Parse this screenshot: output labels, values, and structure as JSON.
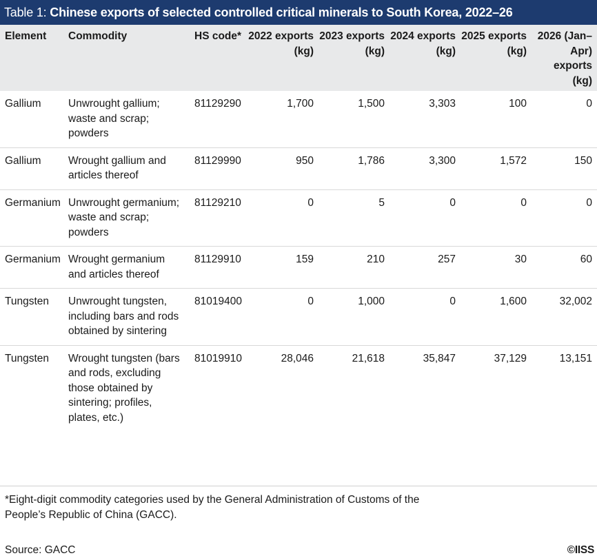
{
  "title": {
    "label": "Table 1:",
    "text": "Chinese exports of selected controlled critical minerals to South Korea, 2022–26"
  },
  "table": {
    "headers": {
      "element": "Element",
      "commodity": "Commodity",
      "hs_code": "HS code*",
      "y2022": "2022 exports (kg)",
      "y2023": "2023 exports (kg)",
      "y2024": "2024 exports (kg)",
      "y2025": "2025 exports (kg)",
      "y2026": "2026 (Jan–Apr) exports (kg)"
    },
    "rows": [
      {
        "element": "Gallium",
        "commodity": "Unwrought gallium; waste and scrap; powders",
        "hs_code": "81129290",
        "y2022": "1,700",
        "y2023": "1,500",
        "y2024": "3,303",
        "y2025": "100",
        "y2026": "0"
      },
      {
        "element": "Gallium",
        "commodity": "Wrought gallium and articles thereof",
        "hs_code": "81129990",
        "y2022": "950",
        "y2023": "1,786",
        "y2024": "3,300",
        "y2025": "1,572",
        "y2026": "150"
      },
      {
        "element": "Germanium",
        "commodity": "Unwrought germanium; waste and scrap; powders",
        "hs_code": "81129210",
        "y2022": "0",
        "y2023": "5",
        "y2024": "0",
        "y2025": "0",
        "y2026": "0"
      },
      {
        "element": "Germanium",
        "commodity": "Wrought germanium and articles thereof",
        "hs_code": "81129910",
        "y2022": "159",
        "y2023": "210",
        "y2024": "257",
        "y2025": "30",
        "y2026": "60"
      },
      {
        "element": "Tungsten",
        "commodity": "Unwrought tungsten, including bars and rods obtained by sintering",
        "hs_code": "81019400",
        "y2022": "0",
        "y2023": "1,000",
        "y2024": "0",
        "y2025": "1,600",
        "y2026": "32,002"
      },
      {
        "element": "Tungsten",
        "commodity": "Wrought tungsten (bars and rods, excluding those obtained by sintering; profiles, plates, etc.)",
        "hs_code": "81019910",
        "y2022": "28,046",
        "y2023": "21,618",
        "y2024": "35,847",
        "y2025": "37,129",
        "y2026": "13,151"
      }
    ]
  },
  "footnote": "*Eight-digit commodity categories used by the General Administration of Customs of the People’s Republic of China (GACC).",
  "source": "Source: GACC",
  "copyright": "©IISS"
}
